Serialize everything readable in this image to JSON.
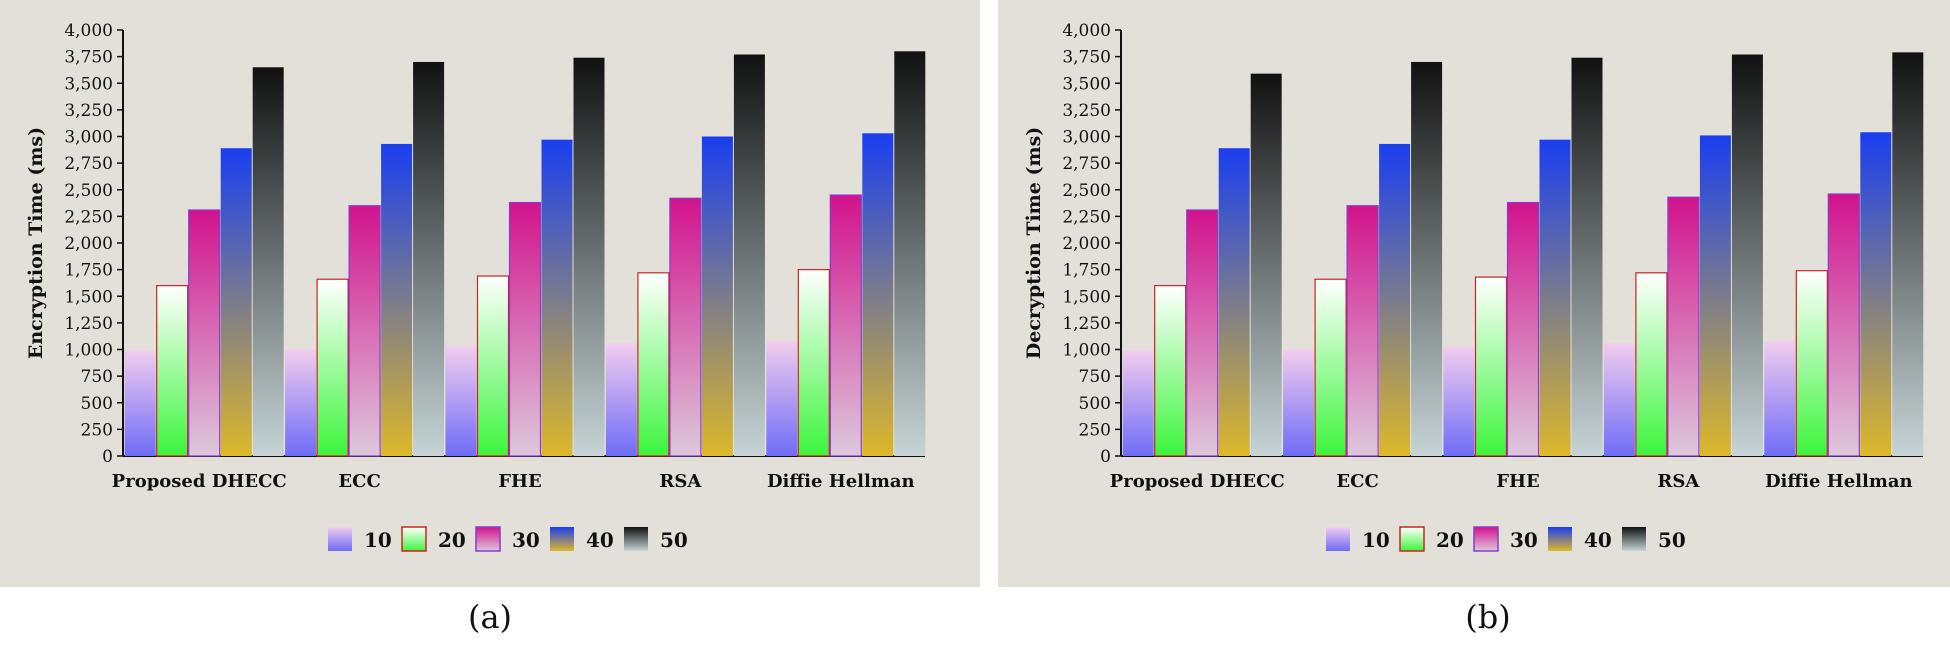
{
  "chart_data": [
    {
      "type": "bar",
      "caption": "(a)",
      "ylabel": "Encryption Time (ms)",
      "xlabel": "",
      "ylim": [
        0,
        4000
      ],
      "yticks": [
        0,
        250,
        500,
        750,
        1000,
        1250,
        1500,
        1750,
        2000,
        2250,
        2500,
        2750,
        3000,
        3250,
        3500,
        3750,
        4000
      ],
      "categories": [
        "Proposed DHECC",
        "ECC",
        "FHE",
        "RSA",
        "Diffie Hellman"
      ],
      "legend_position": "bottom",
      "series": [
        {
          "name": "10",
          "values": [
            990,
            1000,
            1030,
            1060,
            1080
          ]
        },
        {
          "name": "20",
          "values": [
            1600,
            1660,
            1690,
            1720,
            1750
          ]
        },
        {
          "name": "30",
          "values": [
            2310,
            2350,
            2380,
            2420,
            2450
          ]
        },
        {
          "name": "40",
          "values": [
            2890,
            2930,
            2970,
            3000,
            3030
          ]
        },
        {
          "name": "50",
          "values": [
            3650,
            3700,
            3740,
            3770,
            3800
          ]
        }
      ]
    },
    {
      "type": "bar",
      "caption": "(b)",
      "ylabel": "Decryption Time (ms)",
      "xlabel": "",
      "ylim": [
        0,
        4000
      ],
      "yticks": [
        0,
        250,
        500,
        750,
        1000,
        1250,
        1500,
        1750,
        2000,
        2250,
        2500,
        2750,
        3000,
        3250,
        3500,
        3750,
        4000
      ],
      "categories": [
        "Proposed DHECC",
        "ECC",
        "FHE",
        "RSA",
        "Diffie Hellman"
      ],
      "legend_position": "bottom",
      "series": [
        {
          "name": "10",
          "values": [
            990,
            1000,
            1030,
            1060,
            1080
          ]
        },
        {
          "name": "20",
          "values": [
            1600,
            1660,
            1680,
            1720,
            1740
          ]
        },
        {
          "name": "30",
          "values": [
            2310,
            2350,
            2380,
            2430,
            2460
          ]
        },
        {
          "name": "40",
          "values": [
            2890,
            2930,
            2970,
            3010,
            3040
          ]
        },
        {
          "name": "50",
          "values": [
            3590,
            3700,
            3740,
            3770,
            3790
          ]
        }
      ]
    }
  ],
  "series_colors": {
    "10": {
      "top": "#f2cdee",
      "bottom": "#6f6cf7"
    },
    "20": {
      "top": "#ffffff",
      "bottom": "#3cf53c",
      "border": "#cc2222"
    },
    "30": {
      "top": "#d2128c",
      "bottom": "#ddc8dc",
      "border": "#8a3ad0"
    },
    "40": {
      "top": "#1a3ef0",
      "bottom": "#dcb82a"
    },
    "50": {
      "top": "#111111",
      "bottom": "#c6d4d6"
    }
  }
}
